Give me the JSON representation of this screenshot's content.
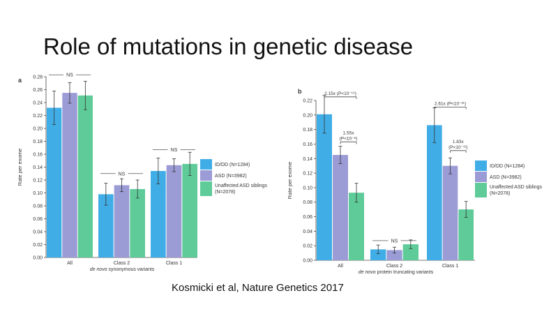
{
  "slide": {
    "title": "Role of mutations in genetic disease",
    "citation": "Kosmicki et al, Nature Genetics 2017"
  },
  "colors": {
    "ID/DD": "#40ade6",
    "ASD": "#9b9bd6",
    "Unaffected": "#5ecb99",
    "axis": "#444444",
    "text": "#333333"
  },
  "chart_data": [
    {
      "panel": "a",
      "type": "bar",
      "xlabel_italic": "de novo",
      "xlabel_rest": " synonymous variants",
      "ylabel": "Rate per exome",
      "ylim": [
        0,
        0.28
      ],
      "yticks": [
        "0.00",
        "0.02",
        "0.04",
        "0.06",
        "0.08",
        "0.10",
        "0.12",
        "0.14",
        "0.16",
        "0.18",
        "0.20",
        "0.22",
        "0.24",
        "0.26",
        "0.28"
      ],
      "categories": [
        "All",
        "Class 2",
        "Class 1"
      ],
      "series": [
        {
          "name": "ID/DD (N=1284)",
          "color_key": "ID/DD",
          "values": [
            0.232,
            0.098,
            0.134
          ],
          "err": [
            0.026,
            0.017,
            0.02
          ]
        },
        {
          "name": "ASD (N=3982)",
          "color_key": "ASD",
          "values": [
            0.255,
            0.112,
            0.143
          ],
          "err": [
            0.016,
            0.01,
            0.01
          ]
        },
        {
          "name": "Unaffected ASD siblings (N=2078)",
          "color_key": "Unaffected",
          "values": [
            0.251,
            0.106,
            0.145
          ],
          "err": [
            0.022,
            0.014,
            0.018
          ]
        }
      ],
      "legend": {
        "entries": [
          "ID/DD (N=1284)",
          "ASD (N=3982)",
          "Unaffected ASD siblings",
          "(N=2078)"
        ],
        "position": "right"
      },
      "annotations": [
        {
          "category": 0,
          "label": "NS",
          "level": 0.283
        },
        {
          "category": 1,
          "label": "NS",
          "level": 0.13
        },
        {
          "category": 2,
          "label": "NS",
          "level": 0.167
        }
      ]
    },
    {
      "panel": "b",
      "type": "bar",
      "xlabel_italic": "de novo",
      "xlabel_rest": " protein truncating variants",
      "ylabel": "Rate per exome",
      "ylim": [
        0,
        0.22
      ],
      "yticks": [
        "0.00",
        "0.02",
        "0.04",
        "0.06",
        "0.08",
        "0.10",
        "0.12",
        "0.14",
        "0.16",
        "0.18",
        "0.20",
        "0.22"
      ],
      "categories": [
        "All",
        "Class 2",
        "Class 1"
      ],
      "series": [
        {
          "name": "ID/DD (N=1284)",
          "color_key": "ID/DD",
          "values": [
            0.201,
            0.015,
            0.186
          ],
          "err": [
            0.026,
            0.006,
            0.024
          ]
        },
        {
          "name": "ASD (N=3982)",
          "color_key": "ASD",
          "values": [
            0.145,
            0.014,
            0.13
          ],
          "err": [
            0.012,
            0.004,
            0.011
          ]
        },
        {
          "name": "Unaffected ASD siblings (N=2078)",
          "color_key": "Unaffected",
          "values": [
            0.093,
            0.022,
            0.07
          ],
          "err": [
            0.013,
            0.006,
            0.011
          ]
        }
      ],
      "legend": {
        "entries": [
          "ID/DD (N=1284)",
          "ASD (N=3982)",
          "Unaffected ASD siblings",
          "(N=2078)"
        ],
        "position": "right"
      },
      "annotations": [
        {
          "type": "bracket",
          "label": "2.15x (P<10⁻¹⁹)",
          "from_series": 0,
          "to_series": 2,
          "category": 0,
          "level": 0.225
        },
        {
          "type": "bracket",
          "label": "1.55x",
          "label2": "(P<10⁻⁸)",
          "from_series": 1,
          "to_series": 2,
          "category": 0,
          "level": 0.163
        },
        {
          "type": "ns",
          "label": "NS",
          "category": 1,
          "level": 0.027
        },
        {
          "type": "bracket",
          "label": "2.61x (P<10⁻²¹)",
          "from_series": 0,
          "to_series": 2,
          "category": 2,
          "level": 0.211
        },
        {
          "type": "bracket",
          "label": "1.83x",
          "label2": "(P<10⁻¹²)",
          "from_series": 1,
          "to_series": 2,
          "category": 2,
          "level": 0.151
        }
      ]
    }
  ]
}
